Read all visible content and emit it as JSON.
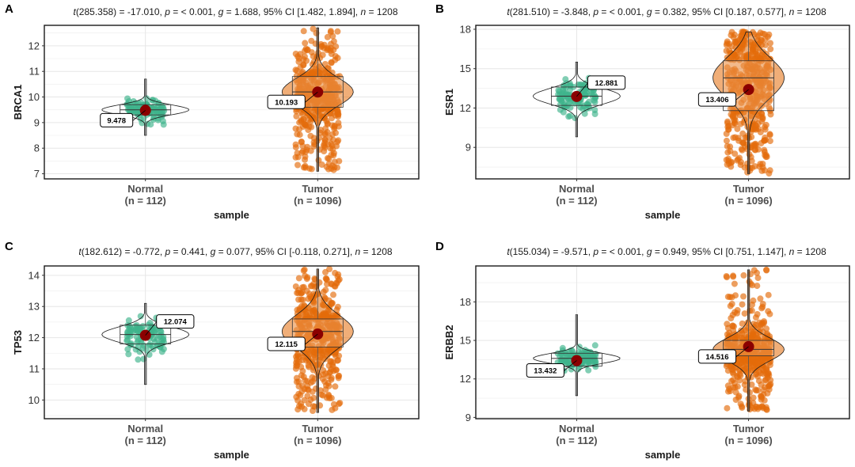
{
  "chart_data": [
    {
      "type": "violin",
      "panel": "A",
      "gene": "BRCA1",
      "subtitle": {
        "t_df": "285.358",
        "t": "-17.010",
        "p": "< 0.001",
        "g": "1.688",
        "ci": "[1.482, 1.894]",
        "n": "1208"
      },
      "xlabel": "sample",
      "ylabel": "BRCA1",
      "ylim": [
        6.8,
        12.8
      ],
      "yticks": [
        7,
        8,
        9,
        10,
        11,
        12
      ],
      "categories": [
        "Normal",
        "Tumor"
      ],
      "category_n": [
        "(n = 112)",
        "(n = 1096)"
      ],
      "means": [
        9.478,
        10.193
      ],
      "mean_labels": [
        "9.478",
        "10.193"
      ],
      "groups": [
        {
          "name": "Normal",
          "min": 8.5,
          "q1": 9.3,
          "median": 9.5,
          "q3": 9.7,
          "max": 10.7,
          "spread": 0.35
        },
        {
          "name": "Tumor",
          "min": 7.1,
          "q1": 9.6,
          "median": 10.2,
          "q3": 10.8,
          "max": 12.7,
          "spread": 0.95
        }
      ]
    },
    {
      "type": "violin",
      "panel": "B",
      "gene": "ESR1",
      "subtitle": {
        "t_df": "281.510",
        "t": "-3.848",
        "p": "< 0.001",
        "g": "0.382",
        "ci": "[0.187, 0.577]",
        "n": "1208"
      },
      "xlabel": "sample",
      "ylabel": "ESR1",
      "ylim": [
        6.6,
        18.3
      ],
      "yticks": [
        9,
        12,
        15,
        18
      ],
      "categories": [
        "Normal",
        "Tumor"
      ],
      "category_n": [
        "(n = 112)",
        "(n = 1096)"
      ],
      "means": [
        12.881,
        13.406
      ],
      "mean_labels": [
        "12.881",
        "13.406"
      ],
      "groups": [
        {
          "name": "Normal",
          "min": 9.8,
          "q1": 12.2,
          "median": 12.9,
          "q3": 13.6,
          "max": 15.5,
          "spread": 1.1
        },
        {
          "name": "Tumor",
          "min": 7.0,
          "q1": 11.8,
          "median": 14.3,
          "q3": 15.6,
          "max": 17.8,
          "spread": 2.8
        }
      ]
    },
    {
      "type": "violin",
      "panel": "C",
      "gene": "TP53",
      "subtitle": {
        "t_df": "182.612",
        "t": "-0.772",
        "p": "0.441",
        "g": "0.077",
        "ci": "[-0.118, 0.271]",
        "n": "1208"
      },
      "xlabel": "sample",
      "ylabel": "TP53",
      "ylim": [
        9.4,
        14.3
      ],
      "yticks": [
        10,
        11,
        12,
        13,
        14
      ],
      "categories": [
        "Normal",
        "Tumor"
      ],
      "category_n": [
        "(n = 112)",
        "(n = 1096)"
      ],
      "means": [
        12.074,
        12.115
      ],
      "mean_labels": [
        "12.074",
        "12.115"
      ],
      "groups": [
        {
          "name": "Normal",
          "min": 10.5,
          "q1": 11.8,
          "median": 12.1,
          "q3": 12.4,
          "max": 13.1,
          "spread": 0.45
        },
        {
          "name": "Tumor",
          "min": 9.6,
          "q1": 11.7,
          "median": 12.2,
          "q3": 12.6,
          "max": 14.2,
          "spread": 0.95
        }
      ]
    },
    {
      "type": "violin",
      "panel": "D",
      "gene": "ERBB2",
      "subtitle": {
        "t_df": "155.034",
        "t": "-9.571",
        "p": "< 0.001",
        "g": "0.949",
        "ci": "[0.751, 1.147]",
        "n": "1208"
      },
      "xlabel": "sample",
      "ylabel": "ERBB2",
      "ylim": [
        8.9,
        20.8
      ],
      "yticks": [
        9,
        12,
        15,
        18
      ],
      "categories": [
        "Normal",
        "Tumor"
      ],
      "category_n": [
        "(n = 112)",
        "(n = 1096)"
      ],
      "means": [
        13.432,
        14.516
      ],
      "mean_labels": [
        "13.432",
        "14.516"
      ],
      "groups": [
        {
          "name": "Normal",
          "min": 10.7,
          "q1": 13.0,
          "median": 13.6,
          "q3": 14.0,
          "max": 17.0,
          "spread": 0.7
        },
        {
          "name": "Tumor",
          "min": 9.5,
          "q1": 13.8,
          "median": 14.3,
          "q3": 15.0,
          "max": 20.5,
          "spread": 1.6
        }
      ]
    }
  ],
  "colors": {
    "normal": "#3fb48c",
    "tumor": "#e36b0a",
    "mean": "#8b0000",
    "grid": "#e6e6e6",
    "panel_border": "#1a1a1a"
  }
}
